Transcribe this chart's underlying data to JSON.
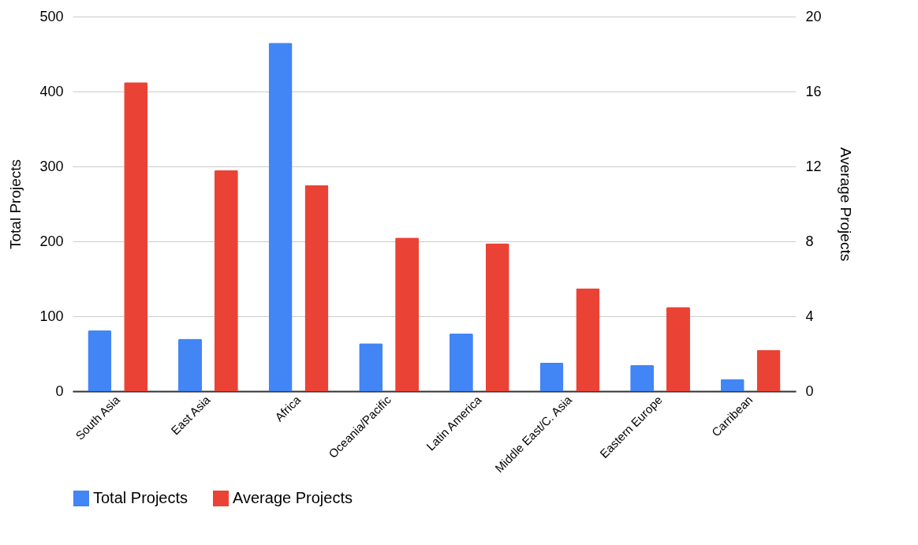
{
  "chart_data": {
    "type": "bar",
    "categories": [
      "South Asia",
      "East Asia",
      "Africa",
      "Oceania/Pacific",
      "Latin America",
      "Middle East/C. Asia",
      "Eastern Europe",
      "Carribean"
    ],
    "series": [
      {
        "name": "Total Projects",
        "color": "#4285f4",
        "values": [
          81,
          70,
          465,
          64,
          77,
          38,
          35,
          16
        ]
      },
      {
        "name": "Average Projects",
        "color": "#ea4335",
        "axis": "y2",
        "values": [
          16.5,
          11.8,
          11.0,
          8.2,
          7.9,
          5.5,
          4.5,
          2.2
        ]
      }
    ],
    "ylabel": "Total Projects",
    "y2label": "Average Projects",
    "ylim": [
      0,
      500
    ],
    "yticks": [
      0,
      100,
      200,
      300,
      400,
      500
    ],
    "y2lim": [
      0,
      20
    ],
    "y2ticks": [
      0,
      4,
      8,
      12,
      16,
      20
    ],
    "grid": "y",
    "legend": "bottom"
  }
}
